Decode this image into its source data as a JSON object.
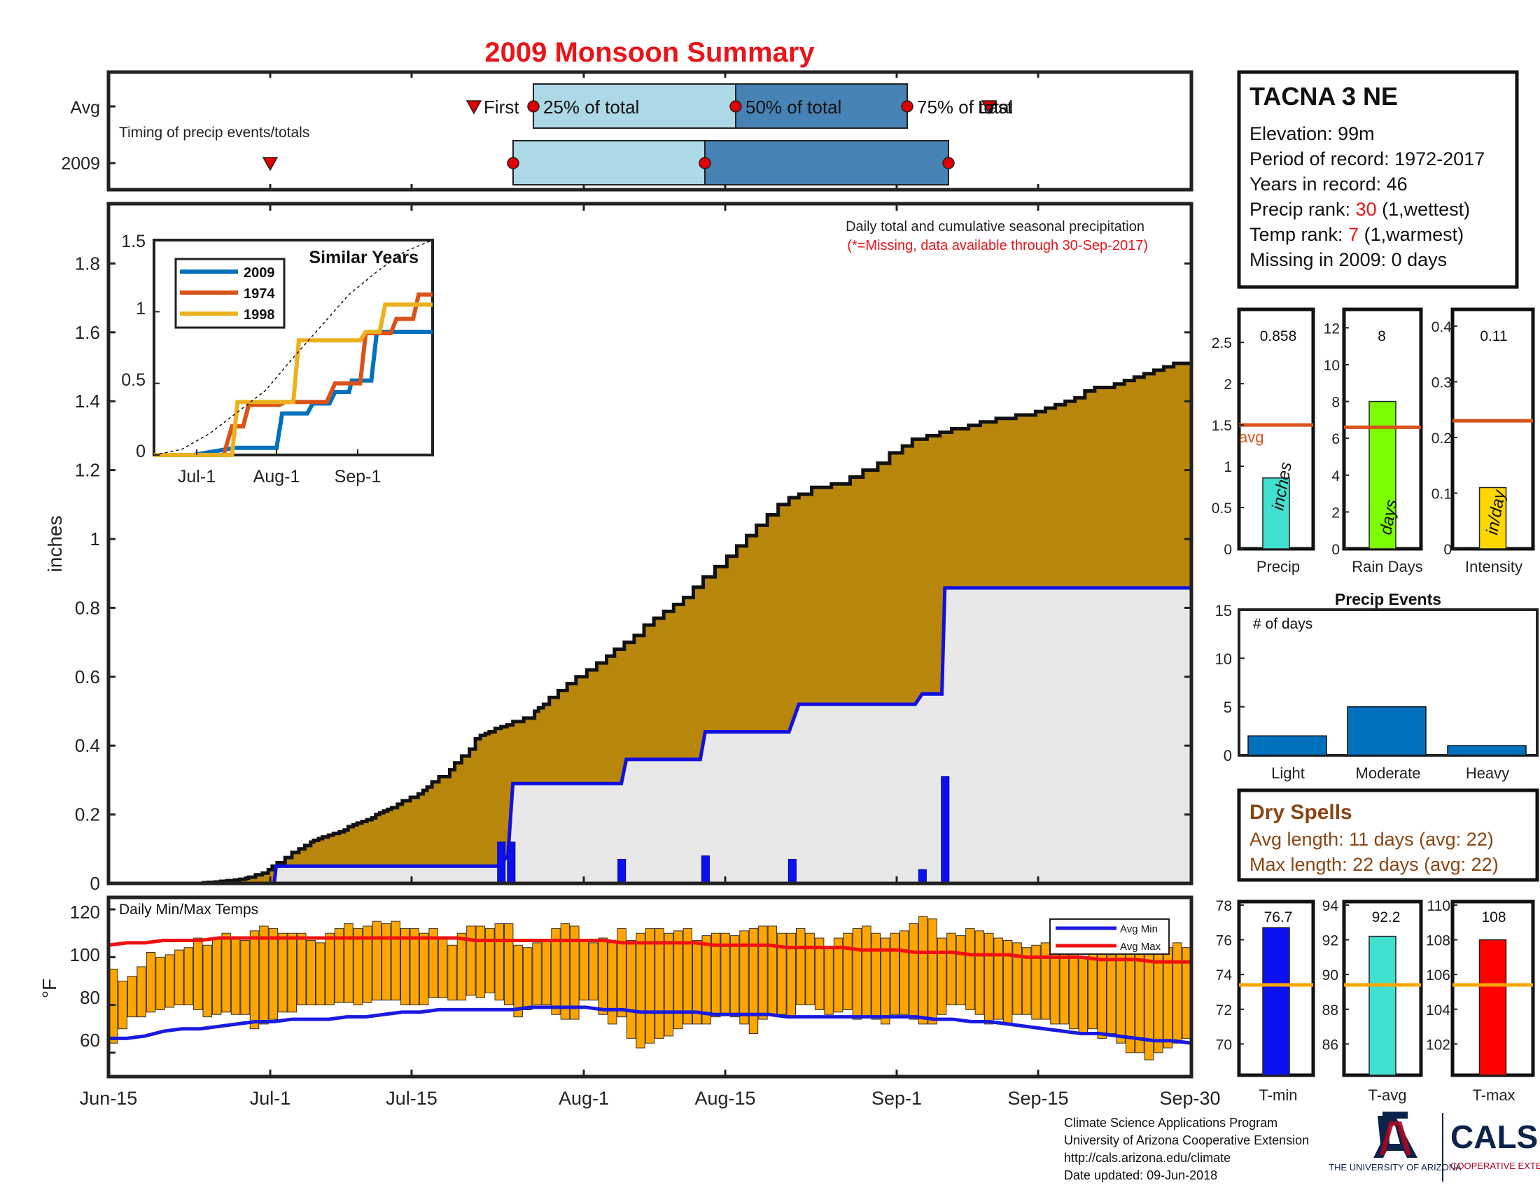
{
  "title": "2009 Monsoon Summary",
  "timing": {
    "caption": "Timing of precip events/totals",
    "rows": [
      "Avg",
      "2009"
    ],
    "labels": {
      "first": "First",
      "p25": "25% of total",
      "p50": "50% of total",
      "p75": "75% of total",
      "last": "Last"
    }
  },
  "station": {
    "name": "TACNA 3 NE",
    "elevation": "Elevation: 99m",
    "period": "Period of record: 1972-2017",
    "years": "Years in record: 46",
    "precip_rank_label": "Precip rank: ",
    "precip_rank_value": "30",
    "precip_rank_note": " (1,wettest)",
    "temp_rank_label": "Temp rank: ",
    "temp_rank_value": "7",
    "temp_rank_note": " (1,warmest)",
    "missing": "Missing in 2009: 0 days"
  },
  "main_panel": {
    "caption1": "Daily total and cumulative seasonal precipitation",
    "caption2": "(*=Missing, data available through 30-Sep-2017)",
    "ylabel": "inches",
    "yticks": [
      "0",
      "0.2",
      "0.4",
      "0.6",
      "0.8",
      "1",
      "1.2",
      "1.4",
      "1.6",
      "1.8"
    ],
    "xticks": [
      "Jun-15",
      "Jul-1",
      "Jul-15",
      "Aug-1",
      "Aug-15",
      "Sep-1",
      "Sep-15",
      "Sep-30"
    ]
  },
  "inset": {
    "title": "Similar Years",
    "legend": [
      "2009",
      "1974",
      "1998"
    ],
    "yticks": [
      "0",
      "0.5",
      "1",
      "1.5"
    ],
    "xticks": [
      "Jul-1",
      "Aug-1",
      "Sep-1"
    ]
  },
  "temp_panel": {
    "caption": "Daily Min/Max Temps",
    "ylabel": "°F",
    "yticks": [
      "60",
      "80",
      "100",
      "120"
    ],
    "legend": [
      "Avg Min",
      "Avg Max"
    ]
  },
  "bars_panel": {
    "precip": {
      "value": "0.858",
      "label": "Precip",
      "unit": "inches",
      "yticks": [
        "0",
        "0.5",
        "1",
        "1.5",
        "2",
        "2.5"
      ],
      "avg_label": "avg"
    },
    "raindays": {
      "value": "8",
      "label": "Rain Days",
      "unit": "days",
      "yticks": [
        "0",
        "2",
        "4",
        "6",
        "8",
        "10",
        "12"
      ]
    },
    "intensity": {
      "value": "0.11",
      "label": "Intensity",
      "unit": "in/day",
      "yticks": [
        "0",
        "0.1",
        "0.2",
        "0.3",
        "0.4"
      ]
    }
  },
  "events_panel": {
    "title": "Precip Events",
    "ylabel": "# of days",
    "categories": [
      "Light",
      "Moderate",
      "Heavy"
    ],
    "yticks": [
      "0",
      "5",
      "10",
      "15"
    ]
  },
  "dry_spells": {
    "title": "Dry Spells",
    "avg_length": "Avg length: 11 days (avg: 22)",
    "max_length": "Max length: 22 days (avg: 22)"
  },
  "temp_bars": {
    "tmin": {
      "value": "76.7",
      "label": "T-min",
      "yticks": [
        "70",
        "72",
        "74",
        "76",
        "78"
      ]
    },
    "tavg": {
      "value": "92.2",
      "label": "T-avg",
      "yticks": [
        "86",
        "88",
        "90",
        "92",
        "94"
      ]
    },
    "tmax": {
      "value": "108",
      "label": "T-max",
      "yticks": [
        "102",
        "104",
        "106",
        "108",
        "110"
      ]
    }
  },
  "footer": {
    "line1": "Climate Science Applications Program",
    "line2": "University of Arizona Cooperative Extension",
    "line3": "http://cals.arizona.edu/climate",
    "line4": " Date updated: 09-Jun-2018",
    "logo_ua": "THE UNIVERSITY OF ARIZONA",
    "logo_cals": "CALS",
    "logo_coop": "COOPERATIVE EXTENSION"
  },
  "colors": {
    "title": "#e8151b",
    "cum": "#b8860b",
    "avg_fill": "#e8e8e8",
    "avg_line": "#1010e0",
    "daily": "#0b10f0",
    "bar_lt": "#add8e6",
    "bar_dk": "#4682b4",
    "marker": "#e00000",
    "temp_bar": "#ffa500",
    "avg_max": "#ee1111",
    "avg_min": "#1a1ae0",
    "s2009": "#0072bd",
    "s1974": "#d95319",
    "s1998": "#edb120",
    "precip_bar": "#40e0d0",
    "days_bar": "#7cfc00",
    "int_bar": "#ffd700",
    "avg_orange": "#d95319",
    "events_bar": "#0072bd",
    "dry": "#8b4513",
    "tmin_bar": "#0b10f0",
    "tavg_bar": "#40e0d0",
    "tmax_bar": "#ff0000",
    "avg_temp": "#ffa500"
  },
  "chart_data": [
    {
      "type": "area",
      "name": "cumulative",
      "title": "Daily total and cumulative seasonal precipitation",
      "ylabel": "inches",
      "ylim": [
        0,
        1.95
      ],
      "x_range": [
        "Jun-15",
        "Sep-30"
      ],
      "series": [
        {
          "name": "cumulative average",
          "x": [
            0,
            9,
            12,
            14,
            17,
            25,
            29,
            43,
            49,
            52,
            58,
            64,
            73,
            77,
            86,
            96,
            101,
            108,
            114,
            120,
            128,
            133,
            139,
            142,
            149,
            156,
            162,
            166,
            171,
            179,
            186,
            193,
            199,
            205,
            208,
            213,
            217,
            223,
            228,
            234,
            239,
            243,
            248,
            252,
            257,
            262,
            267,
            271,
            275,
            279,
            283,
            287,
            293,
            298,
            306,
            314,
            319,
            323,
            328,
            335,
            346,
            351,
            358,
            366,
            372,
            377,
            382,
            386,
            392,
            398,
            404,
            410,
            421,
            432,
            436,
            441,
            447,
            456,
            465,
            474,
            485,
            495,
            505,
            513,
            523,
            533,
            543,
            553,
            563,
            573,
            583,
            593,
            603,
            615,
            627,
            637,
            647,
            657,
            668,
            679,
            690,
            700,
            713,
            733,
            752,
            765,
            780,
            792,
            805,
            815,
            830,
            843,
            855,
            872,
            884,
            900,
            910,
            920,
            930,
            940,
            950,
            960,
            970,
            980,
            990,
            1000,
            1020,
            1030,
            1040,
            1050,
            1060,
            1070,
            1080,
            1090,
            1098
          ],
          "y": [
            0,
            0,
            0,
            0,
            0,
            0,
            0,
            0,
            0,
            0,
            0,
            0,
            0,
            0,
            0,
            0.002,
            0.003,
            0.004,
            0.006,
            0.008,
            0.01,
            0.012,
            0.015,
            0.018,
            0.025,
            0.03,
            0.04,
            0.05,
            0.06,
            0.075,
            0.09,
            0.1,
            0.11,
            0.12,
            0.125,
            0.13,
            0.135,
            0.14,
            0.145,
            0.15,
            0.155,
            0.165,
            0.17,
            0.175,
            0.18,
            0.185,
            0.19,
            0.2,
            0.205,
            0.21,
            0.215,
            0.22,
            0.23,
            0.24,
            0.25,
            0.26,
            0.27,
            0.28,
            0.295,
            0.31,
            0.33,
            0.35,
            0.37,
            0.39,
            0.42,
            0.43,
            0.435,
            0.44,
            0.45,
            0.455,
            0.46,
            0.47,
            0.48,
            0.5,
            0.51,
            0.52,
            0.54,
            0.56,
            0.58,
            0.6,
            0.62,
            0.64,
            0.66,
            0.68,
            0.7,
            0.72,
            0.75,
            0.77,
            0.79,
            0.81,
            0.83,
            0.86,
            0.89,
            0.92,
            0.95,
            0.98,
            1.01,
            1.04,
            1.07,
            1.1,
            1.12,
            1.13,
            1.15,
            1.16,
            1.18,
            1.2,
            1.22,
            1.25,
            1.27,
            1.29,
            1.3,
            1.31,
            1.32,
            1.33,
            1.34,
            1.35,
            1.35,
            1.36,
            1.36,
            1.37,
            1.38,
            1.39,
            1.4,
            1.41,
            1.43,
            1.44,
            1.45,
            1.46,
            1.47,
            1.48,
            1.49,
            1.5,
            1.51,
            1.51,
            1.5
          ]
        },
        {
          "name": "2009 cumulative",
          "x": [
            0,
            168,
            170,
            175,
            210,
            395,
            405,
            410,
            520,
            525,
            600,
            605,
            690,
            700,
            818,
            825,
            845,
            848,
            1098
          ],
          "y": [
            0,
            0,
            0.05,
            0.05,
            0.05,
            0.05,
            0.08,
            0.29,
            0.29,
            0.36,
            0.36,
            0.44,
            0.44,
            0.52,
            0.52,
            0.55,
            0.55,
            0.858,
            0.858
          ]
        },
        {
          "name": "daily precip",
          "x": [
            398,
            408,
            520,
            605,
            693,
            825,
            848
          ],
          "y": [
            0.12,
            0.12,
            0.07,
            0.08,
            0.07,
            0.04,
            0.31
          ]
        }
      ]
    },
    {
      "type": "bar",
      "name": "daily temperatures",
      "title": "Daily Min/Max Temps",
      "ylabel": "°F",
      "ylim": [
        50,
        125
      ],
      "min": [
        64,
        70,
        75,
        75,
        77,
        78,
        79,
        80,
        80,
        78,
        75,
        76,
        77,
        76,
        76,
        70,
        72,
        74,
        77,
        77,
        80,
        80,
        80,
        80,
        81,
        81,
        80,
        81,
        82,
        82,
        82,
        80,
        80,
        80,
        83,
        83,
        82,
        82,
        84,
        83,
        85,
        82,
        80,
        75,
        78,
        80,
        80,
        76,
        74,
        74,
        82,
        82,
        76,
        72,
        75,
        66,
        62,
        64,
        66,
        67,
        70,
        72,
        72,
        72,
        75,
        76,
        75,
        72,
        68,
        74,
        76,
        76,
        75,
        80,
        80,
        78,
        76,
        77,
        78,
        74,
        75,
        74,
        72,
        76,
        76,
        74,
        72,
        72,
        76,
        80,
        80,
        78,
        76,
        72,
        74,
        72,
        76,
        76,
        74,
        74,
        72,
        72,
        70,
        68,
        70,
        66,
        68,
        64,
        60,
        60,
        57,
        60,
        62,
        64,
        66
      ],
      "max": [
        95,
        90,
        92,
        96,
        102,
        100,
        101,
        103,
        104,
        108,
        105,
        108,
        110,
        108,
        107,
        111,
        113,
        112,
        110,
        110,
        110,
        107,
        106,
        110,
        112,
        114,
        112,
        113,
        115,
        114,
        115,
        112,
        112,
        110,
        112,
        108,
        105,
        110,
        113,
        113,
        112,
        114,
        114,
        105,
        104,
        106,
        107,
        112,
        114,
        113,
        107,
        106,
        108,
        106,
        112,
        107,
        110,
        112,
        112,
        110,
        111,
        112,
        107,
        109,
        110,
        110,
        109,
        111,
        112,
        113,
        113,
        110,
        110,
        112,
        110,
        108,
        104,
        108,
        110,
        112,
        113,
        110,
        108,
        110,
        111,
        114,
        117,
        116,
        108,
        110,
        109,
        112,
        111,
        110,
        108,
        107,
        106,
        104,
        105,
        106,
        104,
        106,
        102,
        100,
        102,
        104,
        101,
        107,
        108,
        105,
        107,
        106,
        104,
        106,
        104
      ],
      "avg_min": [
        66,
        66,
        67,
        69,
        70,
        70,
        71,
        72,
        73,
        73,
        74,
        74,
        74,
        75,
        75,
        76,
        77,
        77,
        78,
        78,
        78,
        78,
        78,
        79,
        79,
        79,
        79,
        78,
        78,
        77,
        77,
        77,
        77,
        76,
        76,
        76,
        76,
        75,
        75,
        75,
        75,
        75,
        75,
        75,
        75,
        74,
        74,
        73,
        73,
        72,
        71,
        70,
        69,
        68,
        68,
        67,
        66,
        65,
        65,
        64
      ],
      "avg_max": [
        105,
        106,
        106,
        107,
        107,
        107,
        108,
        108,
        108,
        108,
        108,
        108,
        108,
        108,
        108,
        108,
        108,
        108,
        108,
        108,
        107,
        107,
        107,
        107,
        107,
        107,
        107,
        107,
        106,
        106,
        106,
        106,
        106,
        105,
        105,
        105,
        105,
        104,
        104,
        104,
        104,
        103,
        103,
        103,
        102,
        102,
        102,
        101,
        101,
        101,
        100,
        100,
        100,
        100,
        99,
        99,
        99,
        98,
        98,
        98
      ]
    },
    {
      "type": "line",
      "name": "similar years",
      "title": "Similar Years",
      "ylim": [
        0,
        1.5
      ],
      "series": [
        {
          "name": "2009",
          "x": [
            0,
            0.14,
            0.29,
            0.31,
            0.33,
            0.44,
            0.46,
            0.55,
            0.57,
            0.63,
            0.65,
            0.7,
            0.71,
            0.78,
            0.8,
            1.0
          ],
          "y": [
            0,
            0,
            0.05,
            0.05,
            0.05,
            0.05,
            0.29,
            0.29,
            0.36,
            0.36,
            0.44,
            0.44,
            0.52,
            0.52,
            0.86,
            0.86
          ]
        },
        {
          "name": "1974",
          "x": [
            0,
            0.25,
            0.28,
            0.32,
            0.34,
            0.45,
            0.47,
            0.62,
            0.65,
            0.74,
            0.76,
            0.85,
            0.87,
            0.93,
            0.95,
            1.0
          ],
          "y": [
            0,
            0,
            0.2,
            0.2,
            0.35,
            0.35,
            0.37,
            0.37,
            0.5,
            0.5,
            0.85,
            0.85,
            0.95,
            0.95,
            1.12,
            1.12
          ]
        },
        {
          "name": "1998",
          "x": [
            0,
            0.28,
            0.3,
            0.5,
            0.52,
            0.74,
            0.76,
            0.81,
            0.83,
            1.0
          ],
          "y": [
            0,
            0,
            0.37,
            0.37,
            0.8,
            0.8,
            0.86,
            0.86,
            1.05,
            1.05
          ]
        },
        {
          "name": "average",
          "x": [
            0,
            0.1,
            0.2,
            0.3,
            0.4,
            0.5,
            0.6,
            0.7,
            0.8,
            0.9,
            1.0
          ],
          "y": [
            0,
            0.04,
            0.15,
            0.3,
            0.45,
            0.68,
            0.9,
            1.12,
            1.28,
            1.42,
            1.5
          ]
        }
      ]
    },
    {
      "type": "bar",
      "name": "season precip",
      "categories": [
        "Precip"
      ],
      "values": [
        0.858
      ],
      "average": 1.5,
      "ylim": [
        0,
        2.9
      ]
    },
    {
      "type": "bar",
      "name": "rain days",
      "categories": [
        "Rain Days"
      ],
      "values": [
        8
      ],
      "average": 6.6,
      "ylim": [
        0,
        13
      ]
    },
    {
      "type": "bar",
      "name": "intensity",
      "categories": [
        "Intensity"
      ],
      "values": [
        0.11
      ],
      "average": 0.23,
      "ylim": [
        0,
        0.43
      ]
    },
    {
      "type": "bar",
      "name": "precip events",
      "title": "Precip Events",
      "categories": [
        "Light",
        "Moderate",
        "Heavy"
      ],
      "values": [
        2,
        5,
        1
      ],
      "ylim": [
        0,
        15
      ]
    },
    {
      "type": "bar",
      "name": "T-min",
      "categories": [
        "T-min"
      ],
      "values": [
        76.7
      ],
      "average": 73.4,
      "ylim": [
        68.2,
        78.2
      ]
    },
    {
      "type": "bar",
      "name": "T-avg",
      "categories": [
        "T-avg"
      ],
      "values": [
        92.2
      ],
      "average": 89.4,
      "ylim": [
        84.2,
        94.2
      ]
    },
    {
      "type": "bar",
      "name": "T-max",
      "categories": [
        "T-max"
      ],
      "values": [
        108
      ],
      "average": 105.4,
      "ylim": [
        100.2,
        110.2
      ]
    }
  ]
}
